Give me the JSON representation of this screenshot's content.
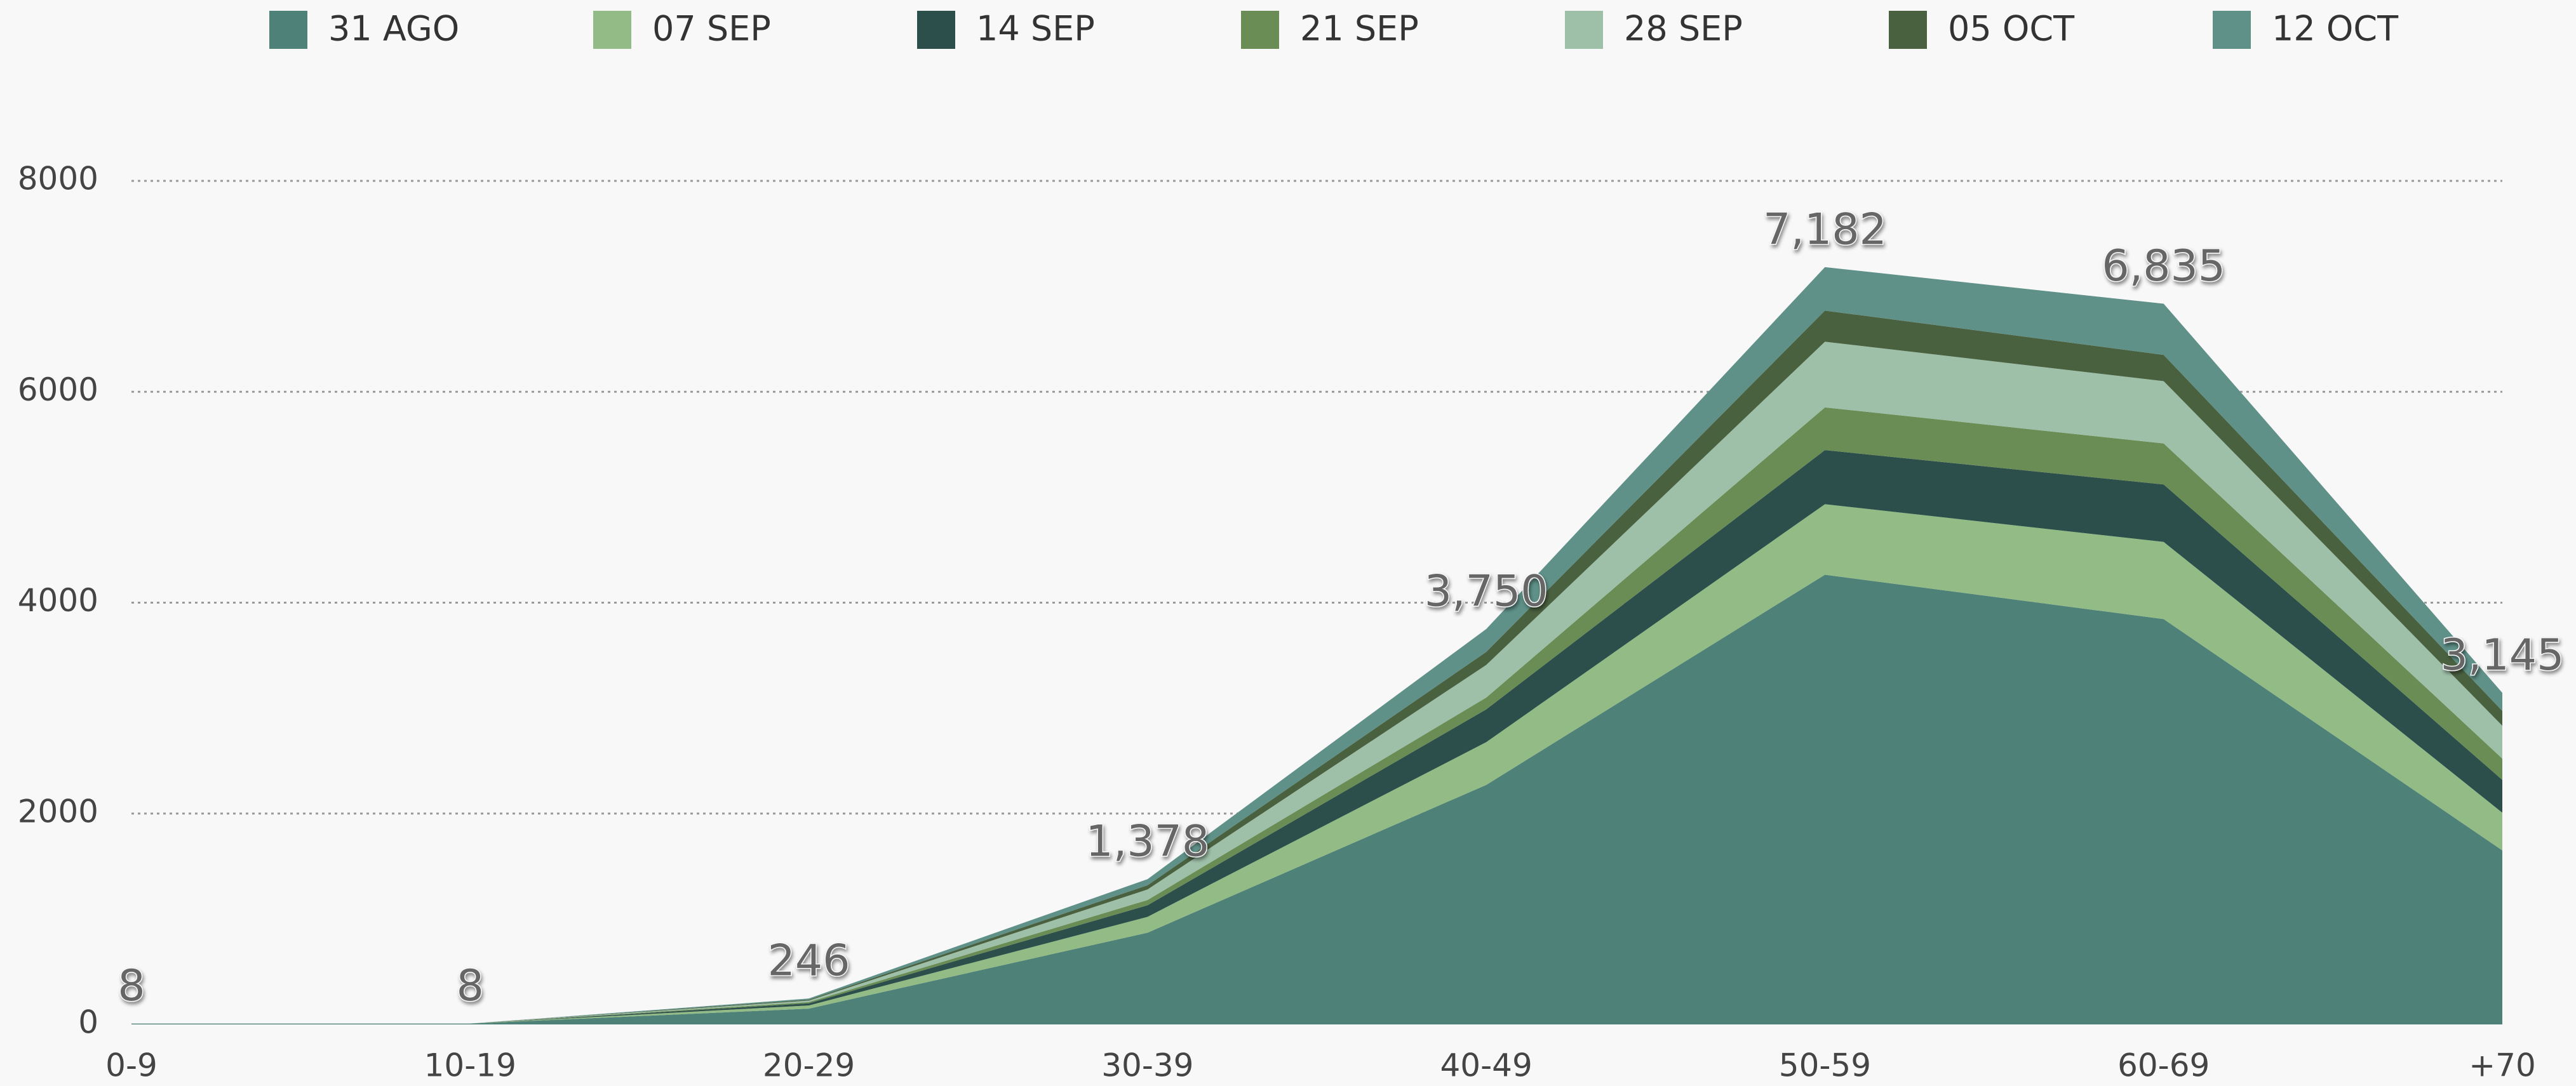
{
  "chart_data": {
    "type": "stacked_area",
    "categories": [
      "0-9",
      "10-19",
      "20-29",
      "30-39",
      "40-49",
      "50-59",
      "60-69",
      "+70"
    ],
    "series": [
      {
        "name": "31 AGO",
        "color": "#4e8178",
        "values": [
          8,
          8,
          150,
          870,
          2272,
          4265,
          3844,
          1650
        ]
      },
      {
        "name": "07 SEP",
        "color": "#93bb85",
        "values": [
          0,
          0,
          30,
          150,
          405,
          669,
          732,
          358
        ]
      },
      {
        "name": "14 SEP",
        "color": "#2c4f4c",
        "values": [
          0,
          0,
          20,
          110,
          311,
          513,
          545,
          311
        ]
      },
      {
        "name": "21 SEP",
        "color": "#6a8d55",
        "values": [
          0,
          0,
          12,
          50,
          112,
          405,
          389,
          202
        ]
      },
      {
        "name": "28 SEP",
        "color": "#9ec0a8",
        "values": [
          0,
          0,
          14,
          100,
          309,
          623,
          591,
          312
        ]
      },
      {
        "name": "05 OCT",
        "color": "#4a6140",
        "values": [
          0,
          0,
          8,
          40,
          124,
          295,
          249,
          140
        ]
      },
      {
        "name": "12 OCT",
        "color": "#5f9189",
        "values": [
          0,
          0,
          12,
          58,
          217,
          412,
          485,
          172
        ]
      }
    ],
    "totals": [
      8,
      8,
      246,
      1378,
      3750,
      7182,
      6835,
      3145
    ],
    "total_labels": [
      "8",
      "8",
      "246",
      "1,378",
      "3,750",
      "7,182",
      "6,835",
      "3,145"
    ],
    "ylim": [
      0,
      8000
    ],
    "yticks": [
      0,
      2000,
      4000,
      6000,
      8000
    ],
    "grid": true,
    "legend": "top"
  }
}
